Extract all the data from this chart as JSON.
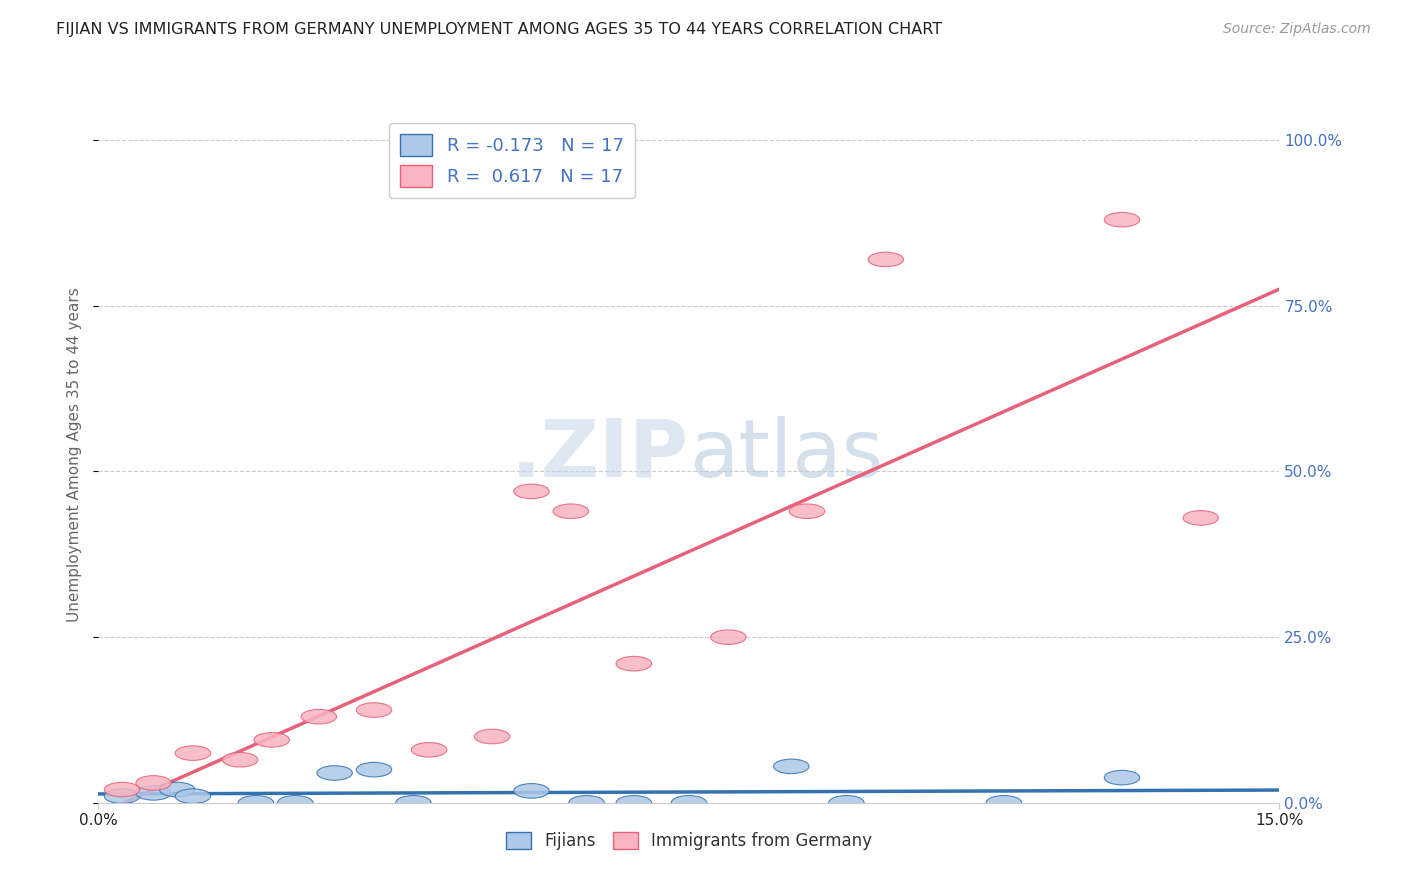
{
  "title": "FIJIAN VS IMMIGRANTS FROM GERMANY UNEMPLOYMENT AMONG AGES 35 TO 44 YEARS CORRELATION CHART",
  "source": "Source: ZipAtlas.com",
  "ylabel": "Unemployment Among Ages 35 to 44 years",
  "xlim": [
    0.0,
    0.15
  ],
  "ylim": [
    0.0,
    1.05
  ],
  "yticks": [
    0.0,
    0.25,
    0.5,
    0.75,
    1.0
  ],
  "ytick_labels": [
    "0.0%",
    "25.0%",
    "50.0%",
    "75.0%",
    "100.0%"
  ],
  "fijian_R": -0.173,
  "fijian_N": 17,
  "germany_R": 0.617,
  "germany_N": 17,
  "fijian_color": "#adc8e8",
  "germany_color": "#f8b4c0",
  "fijian_line_color": "#3572b0",
  "germany_line_color": "#e8607a",
  "watermark_part1": ".ZIP",
  "watermark_part2": "atlas",
  "fijian_x": [
    0.003,
    0.007,
    0.01,
    0.012,
    0.02,
    0.025,
    0.03,
    0.035,
    0.04,
    0.055,
    0.062,
    0.068,
    0.075,
    0.088,
    0.095,
    0.115,
    0.13
  ],
  "fijian_y": [
    0.01,
    0.015,
    0.02,
    0.01,
    0.0,
    0.0,
    0.045,
    0.05,
    0.0,
    0.018,
    0.0,
    0.0,
    0.0,
    0.055,
    0.0,
    0.0,
    0.038
  ],
  "germany_x": [
    0.003,
    0.007,
    0.012,
    0.018,
    0.022,
    0.028,
    0.035,
    0.042,
    0.05,
    0.055,
    0.06,
    0.068,
    0.08,
    0.09,
    0.1,
    0.13,
    0.14
  ],
  "germany_y": [
    0.02,
    0.03,
    0.075,
    0.065,
    0.095,
    0.13,
    0.14,
    0.08,
    0.1,
    0.47,
    0.44,
    0.21,
    0.25,
    0.44,
    0.82,
    0.88,
    0.43
  ],
  "legend_fijian_label": "Fijians",
  "legend_germany_label": "Immigrants from Germany",
  "title_color": "#222222",
  "axis_label_color": "#666666",
  "right_tick_color": "#4472c4",
  "grid_color": "#cccccc",
  "background_color": "#ffffff"
}
